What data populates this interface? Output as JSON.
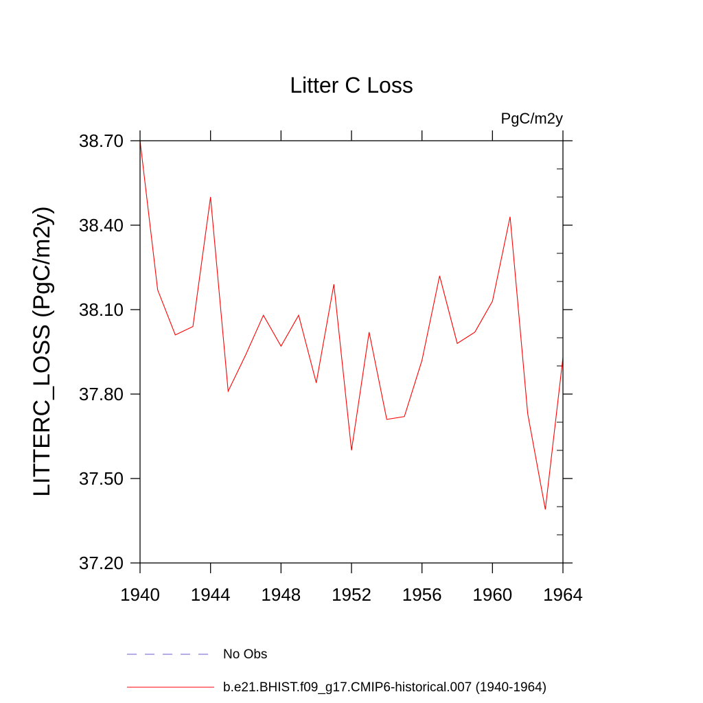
{
  "chart_data": {
    "type": "line",
    "title": "Litter C Loss",
    "units_label": "PgC/m2y",
    "xlabel": "",
    "ylabel": "LITTERC_LOSS  (PgC/m2y)",
    "xlim": [
      1940,
      1964
    ],
    "ylim": [
      37.2,
      38.7
    ],
    "x_ticks": [
      1940,
      1944,
      1948,
      1952,
      1956,
      1960,
      1964
    ],
    "x_tick_labels": [
      "1940",
      "1944",
      "1948",
      "1952",
      "1956",
      "1960",
      "1964"
    ],
    "y_ticks": [
      37.2,
      37.5,
      37.8,
      38.1,
      38.4,
      38.7
    ],
    "y_tick_labels": [
      "37.20",
      "37.50",
      "37.80",
      "38.10",
      "38.40",
      "38.70"
    ],
    "grid": false,
    "legend_position": "bottom",
    "series": [
      {
        "name": "No Obs",
        "color": "#6a5acd",
        "style": "dashed",
        "x": [],
        "values": []
      },
      {
        "name": "b.e21.BHIST.f09_g17.CMIP6-historical.007 (1940-1964)",
        "color": "#ff0000",
        "style": "solid",
        "x": [
          1940,
          1941,
          1942,
          1943,
          1944,
          1945,
          1946,
          1947,
          1948,
          1949,
          1950,
          1951,
          1952,
          1953,
          1954,
          1955,
          1956,
          1957,
          1958,
          1959,
          1960,
          1961,
          1962,
          1963,
          1964
        ],
        "values": [
          38.7,
          38.17,
          38.01,
          38.04,
          38.5,
          37.81,
          37.94,
          38.08,
          37.97,
          38.08,
          37.84,
          38.19,
          37.6,
          38.02,
          37.71,
          37.72,
          37.92,
          38.22,
          37.98,
          38.02,
          38.13,
          38.43,
          37.73,
          37.39,
          37.93
        ]
      }
    ]
  }
}
